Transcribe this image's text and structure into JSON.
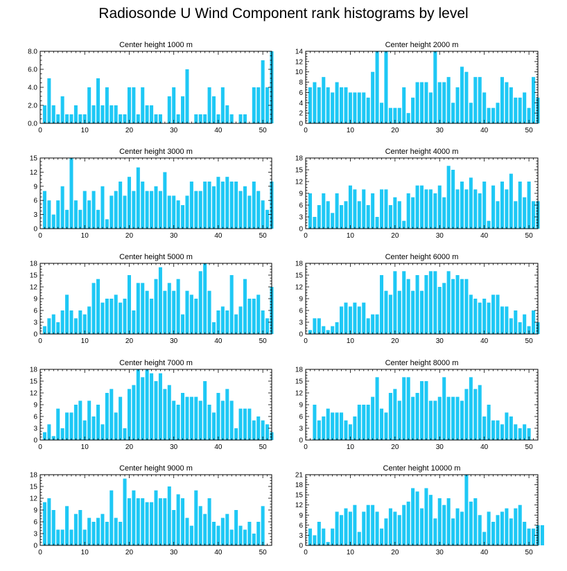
{
  "title": "Radiosonde U Wind Component rank histograms by level",
  "colors": {
    "bar": "#1ec8f5",
    "axis": "#000000",
    "background": "#ffffff"
  },
  "chart_data": [
    {
      "type": "bar",
      "title": "Center height 1000 m",
      "x_start": 1,
      "xticks": [
        0,
        10,
        20,
        30,
        40,
        50
      ],
      "xlim": [
        0,
        52
      ],
      "ylim": [
        0,
        8
      ],
      "yticks": [
        "0.0",
        "2.0",
        "4.0",
        "6.0",
        "8.0"
      ],
      "values": [
        2,
        5,
        2,
        1,
        3,
        1,
        1,
        2,
        1,
        1,
        4,
        2,
        5,
        2,
        4,
        2,
        2,
        1,
        1,
        4,
        4,
        1,
        4,
        2,
        2,
        1,
        1,
        0,
        3,
        4,
        1,
        3,
        6,
        0,
        1,
        1,
        1,
        4,
        3,
        1,
        4,
        2,
        1,
        0,
        1,
        1,
        0,
        4,
        4,
        7,
        4,
        8
      ]
    },
    {
      "type": "bar",
      "title": "Center height 2000 m",
      "x_start": 1,
      "xticks": [
        0,
        10,
        20,
        30,
        40,
        50
      ],
      "xlim": [
        0,
        52
      ],
      "ylim": [
        0,
        14
      ],
      "yticks": [
        "0",
        "2",
        "4",
        "6",
        "8",
        "10",
        "12",
        "14"
      ],
      "values": [
        7,
        8,
        7,
        9,
        7,
        6,
        8,
        7,
        7,
        6,
        6,
        6,
        6,
        5,
        10,
        14,
        4,
        14,
        3,
        3,
        3,
        7,
        2,
        5,
        8,
        8,
        8,
        6,
        14,
        8,
        8,
        9,
        4,
        7,
        11,
        10,
        4,
        9,
        9,
        6,
        3,
        3,
        4,
        9,
        8,
        7,
        5,
        5,
        6,
        3,
        9,
        5
      ]
    },
    {
      "type": "bar",
      "title": "Center height 3000 m",
      "x_start": 1,
      "xticks": [
        0,
        10,
        20,
        30,
        40,
        50
      ],
      "xlim": [
        0,
        52
      ],
      "ylim": [
        0,
        15
      ],
      "yticks": [
        "0",
        "3",
        "6",
        "9",
        "12",
        "15"
      ],
      "values": [
        8,
        6,
        3,
        6,
        9,
        4,
        15,
        6,
        4,
        8,
        6,
        8,
        4,
        9,
        2,
        7,
        8,
        10,
        7,
        11,
        8,
        13,
        10,
        8,
        8,
        9,
        8,
        12,
        7,
        7,
        6,
        5,
        7,
        10,
        8,
        8,
        10,
        10,
        9,
        11,
        10,
        11,
        10,
        10,
        8,
        9,
        7,
        10,
        8,
        6,
        4,
        10
      ]
    },
    {
      "type": "bar",
      "title": "Center height 4000 m",
      "x_start": 1,
      "xticks": [
        0,
        10,
        20,
        30,
        40,
        50
      ],
      "xlim": [
        0,
        52
      ],
      "ylim": [
        0,
        18
      ],
      "yticks": [
        "0",
        "3",
        "6",
        "9",
        "12",
        "15",
        "18"
      ],
      "values": [
        9,
        3,
        6,
        9,
        7,
        4,
        9,
        6,
        7,
        11,
        10,
        7,
        10,
        6,
        9,
        3,
        10,
        10,
        6,
        8,
        7,
        2,
        9,
        8,
        11,
        11,
        10,
        10,
        9,
        11,
        8,
        16,
        15,
        10,
        12,
        10,
        13,
        10,
        9,
        12,
        2,
        11,
        7,
        12,
        10,
        14,
        7,
        12,
        8,
        12,
        7,
        7
      ]
    },
    {
      "type": "bar",
      "title": "Center height 5000 m",
      "x_start": 1,
      "xticks": [
        0,
        10,
        20,
        30,
        40,
        50
      ],
      "xlim": [
        0,
        52
      ],
      "ylim": [
        0,
        18
      ],
      "yticks": [
        "0",
        "3",
        "6",
        "9",
        "12",
        "15",
        "18"
      ],
      "values": [
        2,
        4,
        5,
        3,
        6,
        10,
        6,
        4,
        6,
        5,
        7,
        13,
        14,
        8,
        9,
        9,
        10,
        8,
        9,
        15,
        6,
        13,
        13,
        11,
        9,
        14,
        17,
        11,
        13,
        11,
        14,
        5,
        11,
        10,
        9,
        16,
        18,
        11,
        3,
        6,
        7,
        6,
        15,
        5,
        7,
        14,
        9,
        9,
        10,
        6,
        4,
        12
      ]
    },
    {
      "type": "bar",
      "title": "Center height 6000 m",
      "x_start": 1,
      "xticks": [
        0,
        10,
        20,
        30,
        40,
        50
      ],
      "xlim": [
        0,
        52
      ],
      "ylim": [
        0,
        18
      ],
      "yticks": [
        "0",
        "3",
        "6",
        "9",
        "12",
        "15",
        "18"
      ],
      "values": [
        1,
        4,
        4,
        2,
        1,
        2,
        3,
        7,
        8,
        7,
        8,
        7,
        8,
        4,
        5,
        5,
        15,
        11,
        10,
        16,
        11,
        16,
        14,
        11,
        15,
        11,
        15,
        16,
        16,
        12,
        13,
        16,
        14,
        15,
        14,
        14,
        10,
        9,
        8,
        9,
        8,
        10,
        10,
        7,
        7,
        4,
        6,
        3,
        5,
        2,
        6,
        3
      ]
    },
    {
      "type": "bar",
      "title": "Center height 7000 m",
      "x_start": 1,
      "xticks": [
        0,
        10,
        20,
        30,
        40,
        50
      ],
      "xlim": [
        0,
        52
      ],
      "ylim": [
        0,
        18
      ],
      "yticks": [
        "0",
        "3",
        "6",
        "9",
        "12",
        "15",
        "18"
      ],
      "values": [
        2,
        4,
        1,
        8,
        3,
        7,
        7,
        9,
        10,
        5,
        10,
        6,
        9,
        4,
        12,
        13,
        7,
        11,
        3,
        13,
        14,
        18,
        16,
        18,
        17,
        15,
        17,
        13,
        14,
        10,
        9,
        12,
        11,
        11,
        11,
        10,
        15,
        9,
        7,
        12,
        10,
        13,
        10,
        3,
        8,
        8,
        8,
        5,
        6,
        5,
        4,
        2
      ]
    },
    {
      "type": "bar",
      "title": "Center height 8000 m",
      "x_start": 1,
      "xticks": [
        0,
        10,
        20,
        30,
        40,
        50
      ],
      "xlim": [
        0,
        52
      ],
      "ylim": [
        0,
        18
      ],
      "yticks": [
        "0",
        "3",
        "6",
        "9",
        "12",
        "15",
        "18"
      ],
      "values": [
        0,
        9,
        5,
        6,
        8,
        7,
        7,
        7,
        5,
        4,
        6,
        9,
        9,
        9,
        11,
        16,
        8,
        7,
        12,
        13,
        10,
        16,
        16,
        11,
        12,
        15,
        15,
        10,
        10,
        11,
        16,
        11,
        11,
        11,
        10,
        13,
        16,
        13,
        14,
        6,
        9,
        5,
        5,
        4,
        7,
        6,
        4,
        3,
        4,
        3
      ]
    },
    {
      "type": "bar",
      "title": "Center height 9000 m",
      "x_start": 1,
      "xticks": [
        0,
        10,
        20,
        30,
        40,
        50
      ],
      "xlim": [
        0,
        52
      ],
      "ylim": [
        0,
        18
      ],
      "yticks": [
        "0",
        "3",
        "6",
        "9",
        "12",
        "15",
        "18"
      ],
      "values": [
        11,
        12,
        9,
        4,
        4,
        10,
        4,
        8,
        9,
        4,
        7,
        6,
        7,
        8,
        6,
        14,
        7,
        6,
        17,
        12,
        14,
        12,
        12,
        11,
        11,
        14,
        12,
        12,
        15,
        9,
        13,
        12,
        7,
        5,
        14,
        10,
        8,
        12,
        6,
        5,
        7,
        8,
        4,
        9,
        5,
        4,
        6,
        3,
        6,
        10
      ]
    },
    {
      "type": "bar",
      "title": "Center height 10000 m",
      "x_start": 1,
      "xticks": [
        0,
        10,
        20,
        30,
        40,
        50
      ],
      "xlim": [
        0,
        52
      ],
      "ylim": [
        0,
        21
      ],
      "yticks": [
        "0",
        "3",
        "6",
        "9",
        "12",
        "15",
        "18",
        "21"
      ],
      "values": [
        5,
        3,
        7,
        5,
        1,
        5,
        10,
        9,
        11,
        10,
        12,
        4,
        10,
        12,
        12,
        10,
        5,
        8,
        11,
        10,
        9,
        12,
        13,
        17,
        16,
        11,
        17,
        15,
        8,
        14,
        12,
        14,
        8,
        11,
        10,
        21,
        13,
        14,
        9,
        4,
        10,
        7,
        9,
        10,
        11,
        8,
        11,
        12,
        7,
        5,
        5,
        6,
        6
      ]
    }
  ]
}
